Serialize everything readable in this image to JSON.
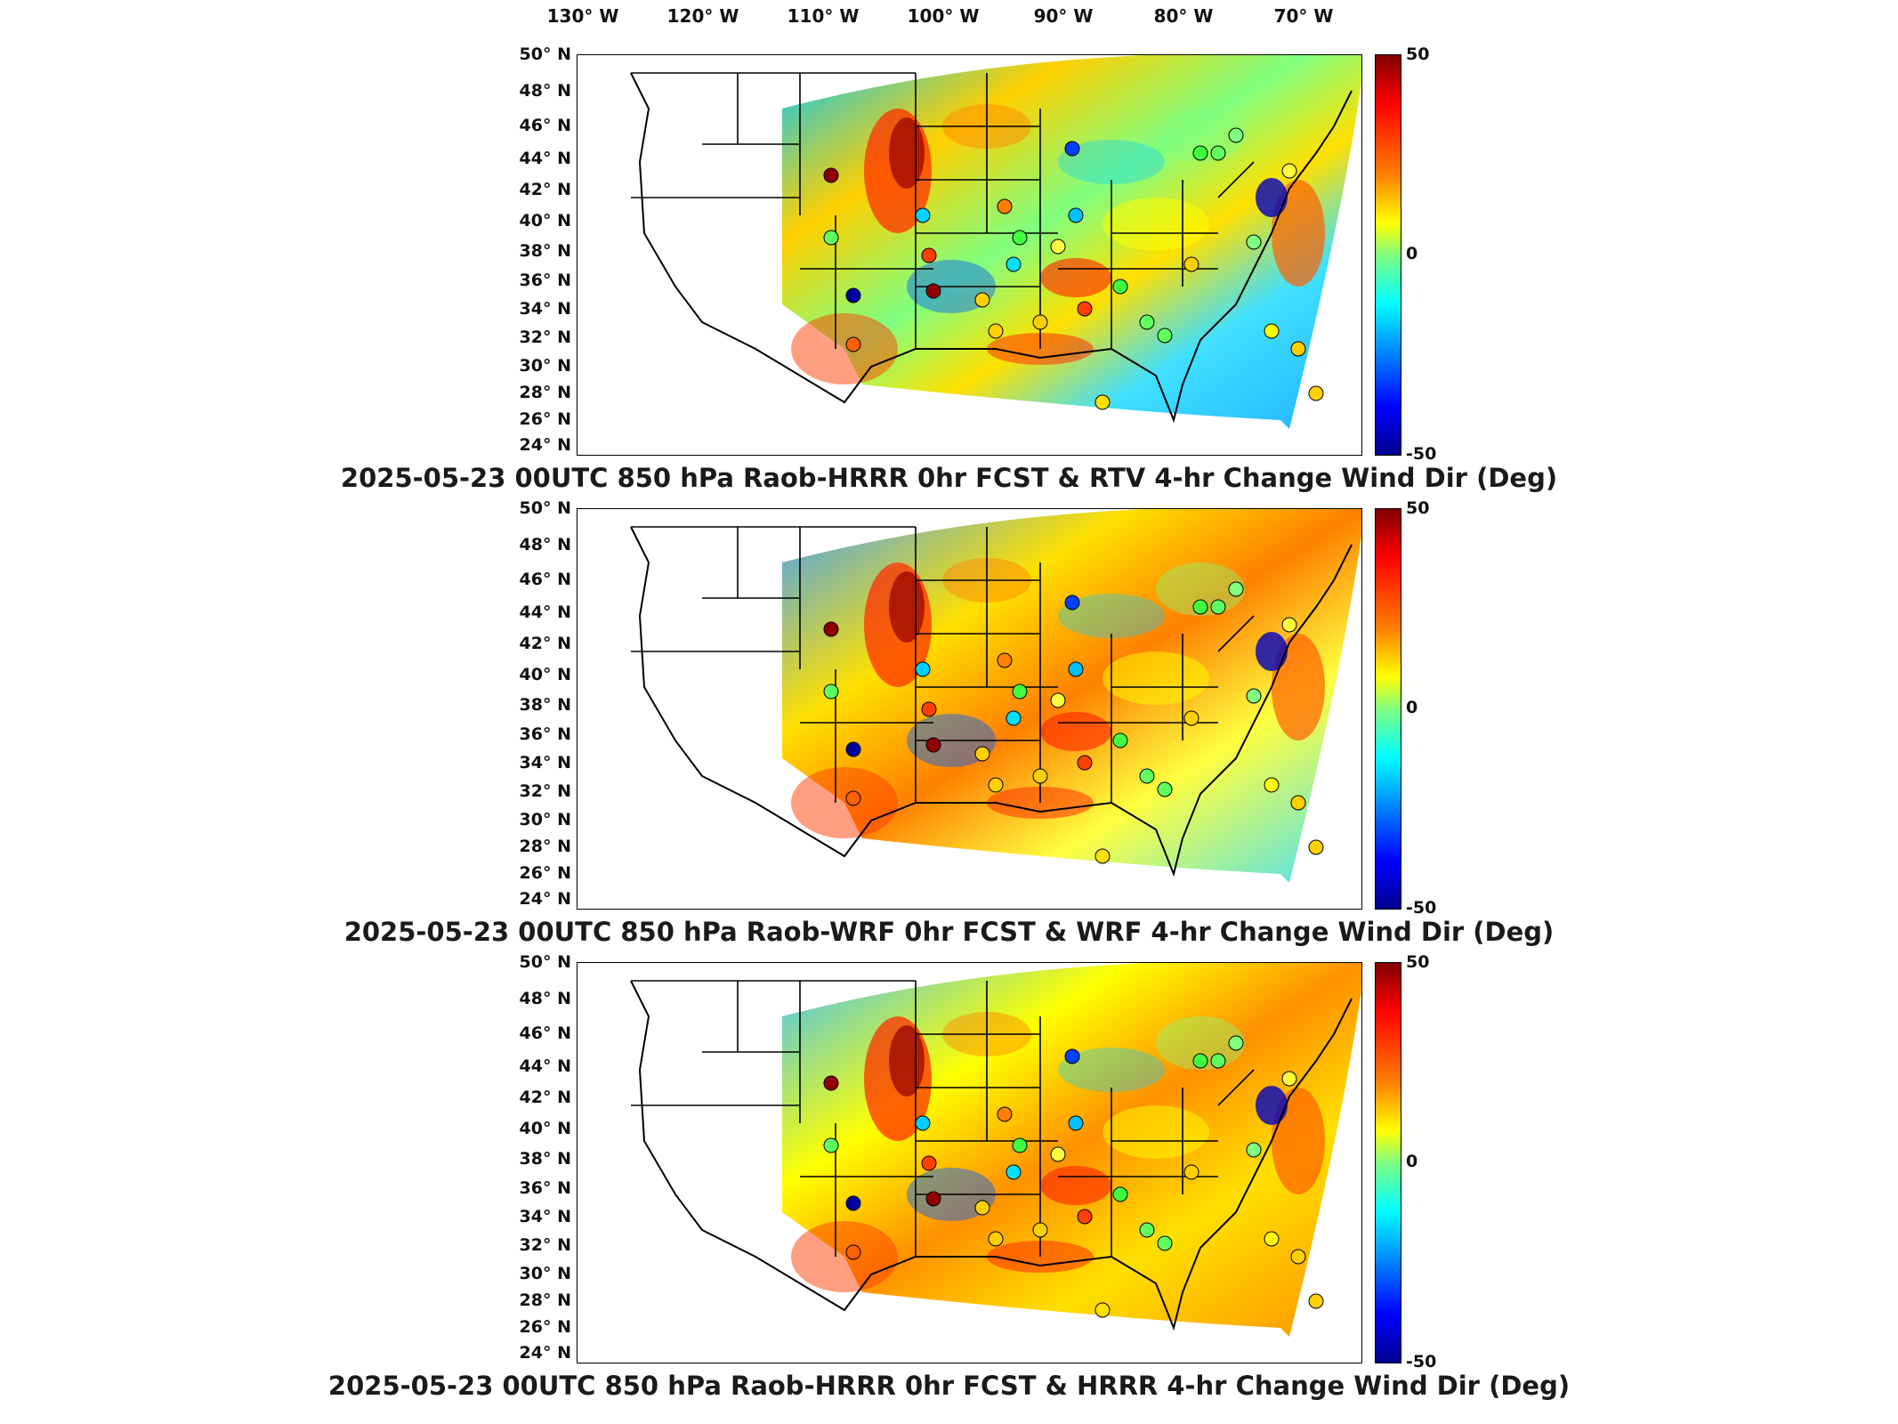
{
  "lon_labels": [
    "130° W",
    "120° W",
    "110° W",
    "100° W",
    "90° W",
    "80° W",
    "70° W"
  ],
  "lat_labels": [
    "50° N",
    "48° N",
    "46° N",
    "44° N",
    "42° N",
    "40° N",
    "38° N",
    "36° N",
    "34° N",
    "32° N",
    "30° N",
    "28° N",
    "26° N",
    "24° N"
  ],
  "colorbar": {
    "max_label": "50",
    "mid_label": "0",
    "min_label": "-50",
    "colormap": "jet",
    "colors": [
      "#800000",
      "#ff0000",
      "#ff8000",
      "#ffff00",
      "#7fff7f",
      "#00ffff",
      "#0080ff",
      "#0000ff",
      "#00008f"
    ]
  },
  "panels": [
    {
      "title": "2025-05-23 00UTC 850 hPa Raob-HRRR 0hr FCST & RTV 4-hr Change Wind Dir (Deg)"
    },
    {
      "title": "2025-05-23 00UTC 850 hPa Raob-WRF 0hr FCST & WRF 4-hr Change Wind Dir (Deg)"
    },
    {
      "title": "2025-05-23 00UTC 850 hPa Raob-HRRR 0hr FCST & HRRR 4-hr Change Wind Dir (Deg)"
    }
  ]
}
